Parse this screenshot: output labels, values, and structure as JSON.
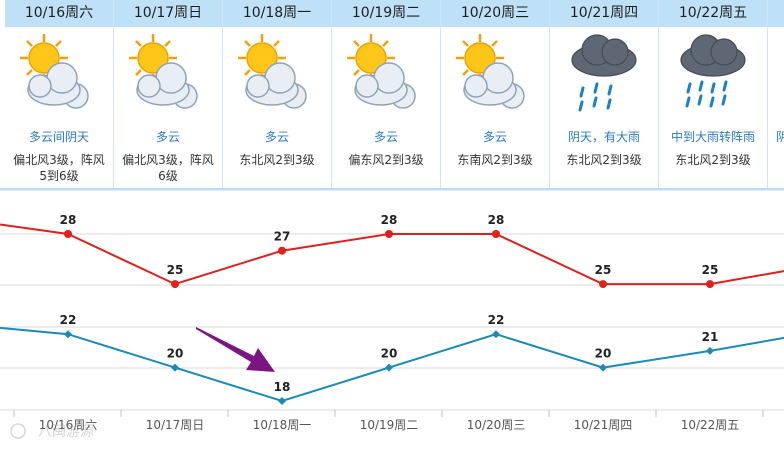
{
  "forecast": {
    "days": [
      {
        "date": "10/16周六",
        "icon": "partly-cloudy-sun-icon",
        "condition": "多云间阴天",
        "wind": "偏北风3级，阵风5到6级"
      },
      {
        "date": "10/17周日",
        "icon": "partly-cloudy-sun-icon",
        "condition": "多云",
        "wind": "偏北风3级，阵风6级"
      },
      {
        "date": "10/18周一",
        "icon": "partly-cloudy-sun-icon",
        "condition": "多云",
        "wind": "东北风2到3级"
      },
      {
        "date": "10/19周二",
        "icon": "partly-cloudy-sun-icon",
        "condition": "多云",
        "wind": "偏东风2到3级"
      },
      {
        "date": "10/20周三",
        "icon": "partly-cloudy-sun-icon",
        "condition": "多云",
        "wind": "东南风2到3级"
      },
      {
        "date": "10/21周四",
        "icon": "rain-cloud-icon",
        "condition": "阴天，有大雨",
        "wind": "东北风2到3级"
      },
      {
        "date": "10/22周五",
        "icon": "heavy-rain-cloud-icon",
        "condition": "中到大雨转阵雨",
        "wind": "东北风2到3级"
      },
      {
        "date": "",
        "icon": "",
        "condition": "阴",
        "wind": ""
      }
    ]
  },
  "chart_data": {
    "type": "line",
    "categories": [
      "10/16周六",
      "10/17周日",
      "10/18周一",
      "10/19周二",
      "10/20周三",
      "10/21周四",
      "10/22周五"
    ],
    "series": [
      {
        "values": [
          28,
          25,
          27,
          28,
          28,
          25,
          25
        ],
        "color": "#e0201c"
      },
      {
        "values": [
          22,
          20,
          18,
          20,
          22,
          20,
          21
        ],
        "color": "#1a8ab8"
      }
    ],
    "grid": true,
    "annotation": {
      "type": "arrow",
      "color": "#7b1583",
      "points_to": "10/18周一"
    }
  },
  "watermark": "八闽游源"
}
